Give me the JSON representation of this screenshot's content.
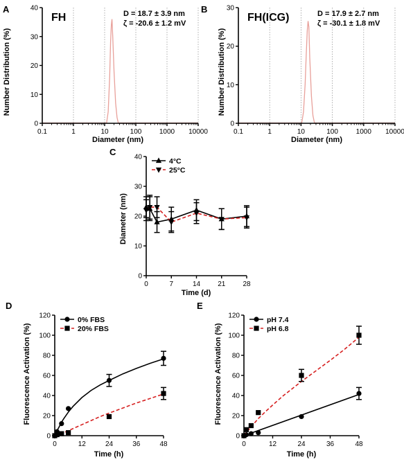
{
  "chart_data": [
    {
      "panel": "A",
      "type": "line",
      "xscale": "log",
      "xlim": [
        0.1,
        10000
      ],
      "ylim": [
        0,
        40
      ],
      "xticks": [
        "0.1",
        "1",
        "10",
        "100",
        "1000",
        "10000"
      ],
      "yticks": [
        "0",
        "10",
        "20",
        "30",
        "40"
      ],
      "xlabel": "Diameter (nm)",
      "ylabel": "Number Distribution (%)",
      "grid": "vertical dotted",
      "annotation_label": "FH",
      "annotation_d": "D = 18.7 ± 3.9 nm",
      "annotation_zeta": "ζ = -20.6 ± 1.2 mV",
      "series": [
        {
          "color": "#e8a09a",
          "x": [
            11.5,
            13,
            14.5,
            15.5,
            16.4,
            17.2,
            18.2,
            20,
            22.5,
            25,
            27.5
          ],
          "y": [
            0,
            4,
            16,
            28,
            34,
            36,
            30,
            18,
            7,
            2,
            0
          ]
        }
      ]
    },
    {
      "panel": "B",
      "type": "line",
      "xscale": "log",
      "xlim": [
        0.1,
        10000
      ],
      "ylim": [
        0,
        30
      ],
      "xticks": [
        "0.1",
        "1",
        "10",
        "100",
        "1000",
        "10000"
      ],
      "yticks": [
        "0",
        "10",
        "20",
        "30"
      ],
      "xlabel": "Diameter (nm)",
      "ylabel": "Number Distribution (%)",
      "grid": "vertical dotted",
      "annotation_label": "FH(ICG)",
      "annotation_d": "D = 17.9 ± 2.7 nm",
      "annotation_zeta": "ζ = -30.1 ± 1.8 mV",
      "series": [
        {
          "color": "#e8a09a",
          "x": [
            10.5,
            12,
            13.5,
            14.7,
            15.8,
            16.8,
            17.8,
            19,
            21.5,
            24,
            27
          ],
          "y": [
            0,
            3,
            10,
            18,
            24,
            26.5,
            25,
            17,
            7,
            2,
            0
          ]
        }
      ]
    },
    {
      "panel": "C",
      "type": "line",
      "xlim": [
        0,
        28
      ],
      "ylim": [
        0,
        40
      ],
      "xticks": [
        "0",
        "7",
        "14",
        "21",
        "28"
      ],
      "yticks": [
        "0",
        "10",
        "20",
        "30",
        "40"
      ],
      "xlabel": "Time (d)",
      "ylabel": "Diameter (nm)",
      "legend_position": "top-left",
      "series": [
        {
          "name": "4°C",
          "color": "#000000",
          "dashed": false,
          "marker": "triangle-up",
          "x": [
            0,
            1,
            3,
            7,
            14,
            21,
            28
          ],
          "y": [
            23,
            22.5,
            18,
            19,
            22,
            19,
            20
          ],
          "err": [
            3.5,
            4,
            3.5,
            4,
            3.5,
            3.5,
            3.5
          ]
        },
        {
          "name": "25°C",
          "color": "#d62020",
          "dashed": true,
          "marker": "triangle-down",
          "x": [
            0,
            1,
            3,
            7,
            14,
            21,
            28
          ],
          "y": [
            22,
            23,
            23,
            18,
            21,
            19,
            19.5
          ],
          "err": [
            3.5,
            4,
            3.5,
            3.5,
            3.5,
            3.5,
            3.5
          ]
        }
      ]
    },
    {
      "panel": "D",
      "type": "scatter",
      "xlim": [
        0,
        48
      ],
      "ylim": [
        0,
        120
      ],
      "xticks": [
        "0",
        "12",
        "24",
        "36",
        "48"
      ],
      "yticks": [
        "0",
        "20",
        "40",
        "60",
        "80",
        "100",
        "120"
      ],
      "xlabel": "Time (h)",
      "ylabel": "Fluorescence Activation (%)",
      "legend_position": "top-left",
      "series": [
        {
          "name": "0% FBS",
          "color": "#000000",
          "dashed": false,
          "marker": "circle",
          "x": [
            0,
            1,
            3,
            6,
            24,
            48
          ],
          "y": [
            0,
            4,
            12,
            27,
            55,
            77
          ],
          "err": [
            0,
            0,
            0,
            0,
            6,
            7
          ],
          "fit_x": [
            0,
            1,
            2,
            3,
            4,
            6,
            8,
            12,
            16,
            20,
            24,
            30,
            36,
            42,
            48
          ],
          "fit_y": [
            0,
            5,
            9,
            13.5,
            17,
            23.5,
            29,
            38,
            45,
            50.5,
            55,
            61.5,
            67,
            72,
            76.5
          ]
        },
        {
          "name": "20% FBS",
          "color": "#d62020",
          "dashed": true,
          "marker": "square",
          "x": [
            0,
            1,
            3,
            6,
            24,
            48
          ],
          "y": [
            0,
            1,
            2,
            3,
            19,
            42
          ],
          "err": [
            0,
            0,
            0,
            0,
            0,
            6
          ],
          "fit_x": [
            0,
            2,
            4,
            6,
            9,
            12,
            16,
            20,
            24,
            30,
            36,
            42,
            48
          ],
          "fit_y": [
            0,
            1.5,
            3,
            5,
            8,
            11,
            15,
            19,
            22.5,
            27.5,
            32.5,
            37,
            41.5
          ]
        }
      ]
    },
    {
      "panel": "E",
      "type": "scatter",
      "xlim": [
        0,
        48
      ],
      "ylim": [
        0,
        120
      ],
      "xticks": [
        "0",
        "12",
        "24",
        "36",
        "48"
      ],
      "yticks": [
        "0",
        "20",
        "40",
        "60",
        "80",
        "100",
        "120"
      ],
      "xlabel": "Time (h)",
      "ylabel": "Fluorescence Activation (%)",
      "legend_position": "top-left",
      "series": [
        {
          "name": "pH 7.4",
          "color": "#000000",
          "dashed": false,
          "marker": "circle",
          "x": [
            0,
            1,
            3,
            6,
            24,
            48
          ],
          "y": [
            0,
            1,
            2,
            3,
            19,
            42
          ],
          "err": [
            0,
            0,
            0,
            0,
            0,
            6
          ],
          "fit_x": [
            0,
            48
          ],
          "fit_y": [
            0,
            41
          ]
        },
        {
          "name": "pH 6.8",
          "color": "#d62020",
          "dashed": true,
          "marker": "square",
          "x": [
            0,
            1,
            3,
            6,
            24,
            48
          ],
          "y": [
            0,
            6,
            10,
            23,
            60,
            100
          ],
          "err": [
            0,
            0,
            0,
            0,
            6,
            9
          ],
          "fit_x": [
            0,
            2,
            4,
            6,
            9,
            12,
            16,
            20,
            24,
            30,
            36,
            42,
            48
          ],
          "fit_y": [
            0,
            6,
            11.5,
            17,
            24,
            30.5,
            39,
            46.5,
            54,
            64.5,
            75,
            86,
            98
          ]
        }
      ]
    }
  ]
}
